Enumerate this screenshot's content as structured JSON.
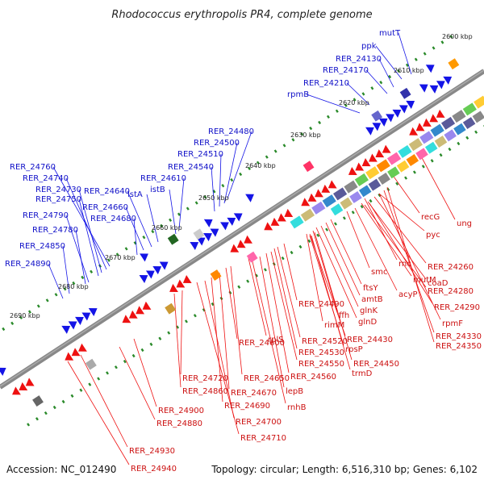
{
  "title": "Rhodococcus erythropolis PR4, complete genome",
  "footer": {
    "accession": "Accession: NC_012490",
    "summary": "Topology: circular; Length: 6,516,310 bp; Genes: 6,102"
  },
  "colors": {
    "forward": "#1414e6",
    "reverse": "#ee1111",
    "backbone": "#888888",
    "tick": "#2a8a2a"
  },
  "kbp_marks": [
    {
      "label": "2600 kbp"
    },
    {
      "label": "2610 kbp"
    },
    {
      "label": "2620 kbp"
    },
    {
      "label": "2630 kbp"
    },
    {
      "label": "2640 kbp"
    },
    {
      "label": "2650 kbp"
    },
    {
      "label": "2660 kbp"
    },
    {
      "label": "2670 kbp"
    },
    {
      "label": "2680 kbp"
    },
    {
      "label": "2690 kbp"
    }
  ],
  "forward_labels": [
    {
      "text": "mutT"
    },
    {
      "text": "ppk"
    },
    {
      "text": "RER_24130"
    },
    {
      "text": "RER_24170"
    },
    {
      "text": "RER_24210"
    },
    {
      "text": "rpmB"
    },
    {
      "text": "RER_24480"
    },
    {
      "text": "RER_24500"
    },
    {
      "text": "RER_24510"
    },
    {
      "text": "RER_24540"
    },
    {
      "text": "RER_24610"
    },
    {
      "text": "istB"
    },
    {
      "text": "istA"
    },
    {
      "text": "RER_24640"
    },
    {
      "text": "RER_24660"
    },
    {
      "text": "RER_24680"
    },
    {
      "text": "RER_24760"
    },
    {
      "text": "RER_24740"
    },
    {
      "text": "RER_24730"
    },
    {
      "text": "RER_24750"
    },
    {
      "text": "RER_24790"
    },
    {
      "text": "RER_24780"
    },
    {
      "text": "RER_24850"
    },
    {
      "text": "RER_24890"
    }
  ],
  "reverse_labels": [
    {
      "text": "recG"
    },
    {
      "text": "ung"
    },
    {
      "text": "pyc"
    },
    {
      "text": "rnc"
    },
    {
      "text": "RER_24260"
    },
    {
      "text": "smc"
    },
    {
      "text": "mutM"
    },
    {
      "text": "coaD"
    },
    {
      "text": "RER_24280"
    },
    {
      "text": "acyP"
    },
    {
      "text": "RER_24290"
    },
    {
      "text": "ftsY"
    },
    {
      "text": "amtB"
    },
    {
      "text": "glnK"
    },
    {
      "text": "glnD"
    },
    {
      "text": "ffh"
    },
    {
      "text": "rpmF"
    },
    {
      "text": "RER_24490"
    },
    {
      "text": "rimM"
    },
    {
      "text": "RER_24330"
    },
    {
      "text": "RER_24350"
    },
    {
      "text": "RER_24430"
    },
    {
      "text": "RER_24520"
    },
    {
      "text": "rplS"
    },
    {
      "text": "RER_24530"
    },
    {
      "text": "RER_24450"
    },
    {
      "text": "RER_24550"
    },
    {
      "text": "rpsP"
    },
    {
      "text": "RER_24600"
    },
    {
      "text": "trmD"
    },
    {
      "text": "RER_24560"
    },
    {
      "text": "RER_24720"
    },
    {
      "text": "RER_24650"
    },
    {
      "text": "RER_24860"
    },
    {
      "text": "RER_24670"
    },
    {
      "text": "lepB"
    },
    {
      "text": "RER_24690"
    },
    {
      "text": "rnhB"
    },
    {
      "text": "RER_24900"
    },
    {
      "text": "RER_24700"
    },
    {
      "text": "RER_24880"
    },
    {
      "text": "RER_24710"
    },
    {
      "text": "RER_24930"
    },
    {
      "text": "RER_24940"
    }
  ]
}
